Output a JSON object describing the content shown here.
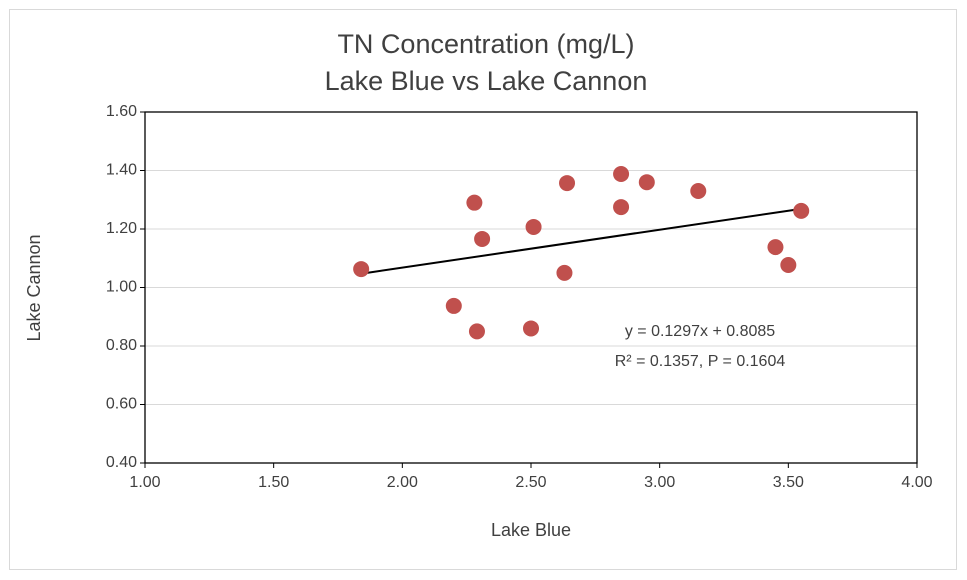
{
  "chart_data": {
    "type": "scatter",
    "title": "TN Concentration (mg/L)",
    "subtitle": "Lake Blue vs Lake Cannon",
    "x_label": "Lake Blue",
    "y_label": "Lake Cannon",
    "series": [
      {
        "name": "Lake Cannon",
        "color": "#c0504d",
        "x": [
          1.84,
          2.28,
          2.31,
          2.2,
          2.29,
          2.51,
          2.5,
          2.64,
          2.63,
          2.85,
          2.85,
          2.95,
          3.15,
          3.45,
          3.5,
          3.55
        ],
        "values": [
          1.063,
          1.29,
          1.166,
          0.937,
          0.85,
          1.207,
          0.86,
          1.357,
          1.05,
          1.388,
          1.275,
          1.36,
          1.33,
          1.138,
          1.077,
          1.262
        ]
      }
    ],
    "trendline": {
      "slope": 0.1297,
      "intercept": 0.8085,
      "color": "#000000",
      "equation": "y = 0.1297x + 0.8085",
      "stats": "R² = 0.1357, P = 0.1604"
    },
    "xlim": [
      1.0,
      4.0
    ],
    "xticks": [
      {
        "value": 1.0,
        "label": "1.00"
      },
      {
        "value": 1.5,
        "label": "1.50"
      },
      {
        "value": 2.0,
        "label": "2.00"
      },
      {
        "value": 2.5,
        "label": "2.50"
      },
      {
        "value": 3.0,
        "label": "3.00"
      },
      {
        "value": 3.5,
        "label": "3.50"
      },
      {
        "value": 4.0,
        "label": "4.00"
      }
    ],
    "ylim": [
      0.4,
      1.6
    ],
    "yticks": [
      {
        "value": 0.4,
        "label": "0.40"
      },
      {
        "value": 0.6,
        "label": "0.60"
      },
      {
        "value": 0.8,
        "label": "0.80"
      },
      {
        "value": 1.0,
        "label": "1.00"
      },
      {
        "value": 1.2,
        "label": "1.20"
      },
      {
        "value": 1.4,
        "label": "1.40"
      },
      {
        "value": 1.6,
        "label": "1.60"
      }
    ],
    "grid": true
  }
}
